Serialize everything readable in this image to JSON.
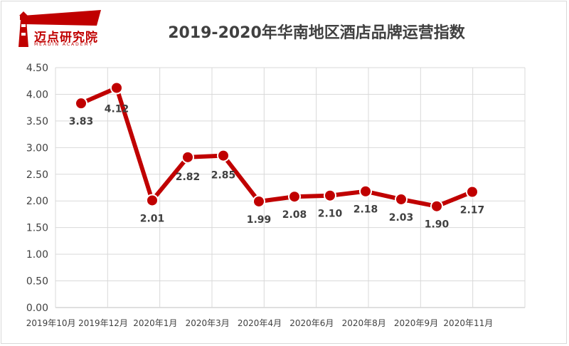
{
  "logo": {
    "name": "迈点研究院",
    "sub": "MEADIN ACADEMY"
  },
  "chart_data": {
    "type": "line",
    "title": "2019-2020年华南地区酒店品牌运营指数",
    "x_tick_labels": [
      "2019年10月",
      "2019年12月",
      "2020年1月",
      "2020年3月",
      "2020年4月",
      "2020年6月",
      "2020年8月",
      "2020年9月",
      "2020年11月"
    ],
    "y_tick_labels": [
      "0.00",
      "0.50",
      "1.00",
      "1.50",
      "2.00",
      "2.50",
      "3.00",
      "3.50",
      "4.00",
      "4.50"
    ],
    "ylim": [
      0,
      4.5
    ],
    "grid": true,
    "series": [
      {
        "color": "#c00000",
        "values": [
          3.83,
          4.12,
          2.01,
          2.82,
          2.85,
          1.99,
          2.08,
          2.1,
          2.18,
          2.03,
          1.9,
          2.17
        ],
        "labels": [
          "3.83",
          "4.12",
          "2.01",
          "2.82",
          "2.85",
          "1.99",
          "2.08",
          "2.10",
          "2.18",
          "2.03",
          "1.90",
          "2.17"
        ]
      }
    ]
  }
}
